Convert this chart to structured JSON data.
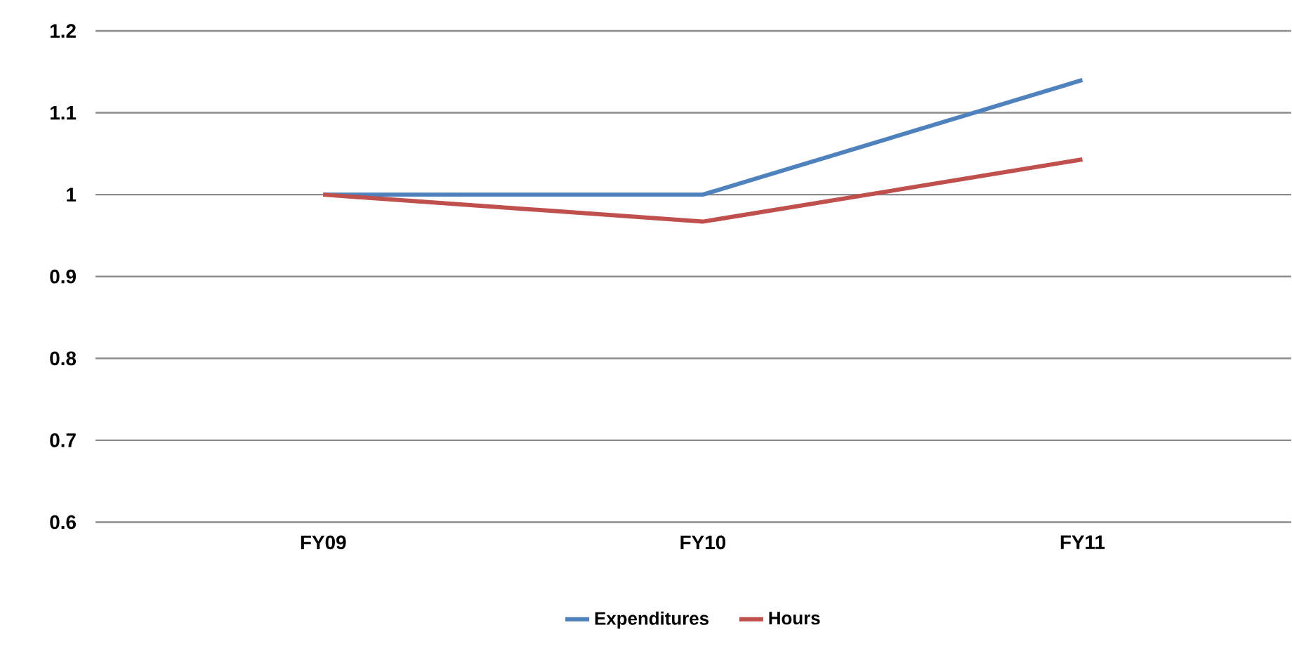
{
  "chart_data": {
    "type": "line",
    "categories": [
      "FY09",
      "FY10",
      "FY11"
    ],
    "series": [
      {
        "name": "Expenditures",
        "color": "#4f81bd",
        "values": [
          1.0,
          1.0,
          1.14
        ]
      },
      {
        "name": "Hours",
        "color": "#c0504d",
        "values": [
          1.0,
          0.967,
          1.043
        ]
      }
    ],
    "ylim": [
      0.6,
      1.2
    ],
    "yticks": [
      {
        "value": 0.6,
        "label": "0.6"
      },
      {
        "value": 0.7,
        "label": "0.7"
      },
      {
        "value": 0.8,
        "label": "0.8"
      },
      {
        "value": 0.9,
        "label": "0.9"
      },
      {
        "value": 1,
        "label": "1"
      },
      {
        "value": 1.1,
        "label": "1.1"
      },
      {
        "value": 1.2,
        "label": "1.2"
      }
    ],
    "grid": "y",
    "legend": "bottom",
    "marker": "none",
    "line_style": "solid"
  }
}
